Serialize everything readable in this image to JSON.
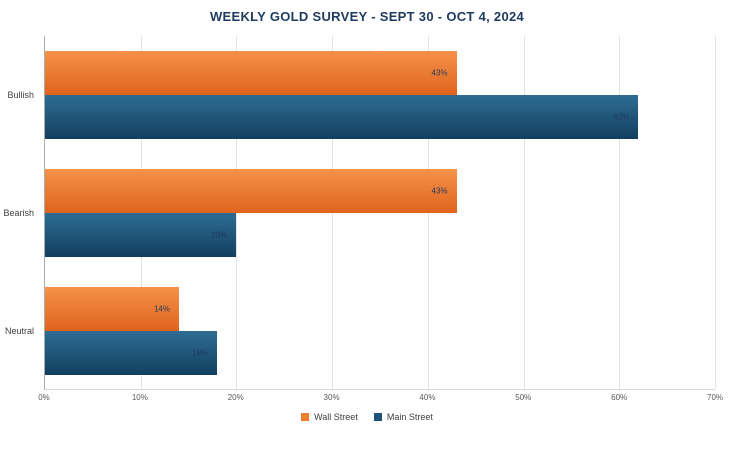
{
  "chart_data": {
    "type": "bar",
    "orientation": "horizontal",
    "title": "WEEKLY GOLD SURVEY - SEPT 30 - OCT 4, 2024",
    "title_color": "#1f3a5f",
    "categories": [
      "Bullish",
      "Bearish",
      "Neutral"
    ],
    "series": [
      {
        "name": "Wall Street",
        "values": [
          43,
          43,
          14
        ],
        "labels": [
          "43%",
          "43%",
          "14%"
        ],
        "color_top": "#f5924a",
        "color_bottom": "#e0631d",
        "legend_color": "#ed7d31"
      },
      {
        "name": "Main Street",
        "values": [
          62,
          20,
          18
        ],
        "labels": [
          "62%",
          "20%",
          "18%"
        ],
        "color_top": "#2e6d94",
        "color_bottom": "#133f5e",
        "legend_color": "#1f5376"
      }
    ],
    "value_label_color": "#1f3a5f",
    "xlim": [
      0,
      70
    ],
    "x_ticks": [
      "0%",
      "10%",
      "20%",
      "30%",
      "40%",
      "50%",
      "60%",
      "70%"
    ],
    "grid": true,
    "legend_position": "bottom"
  }
}
